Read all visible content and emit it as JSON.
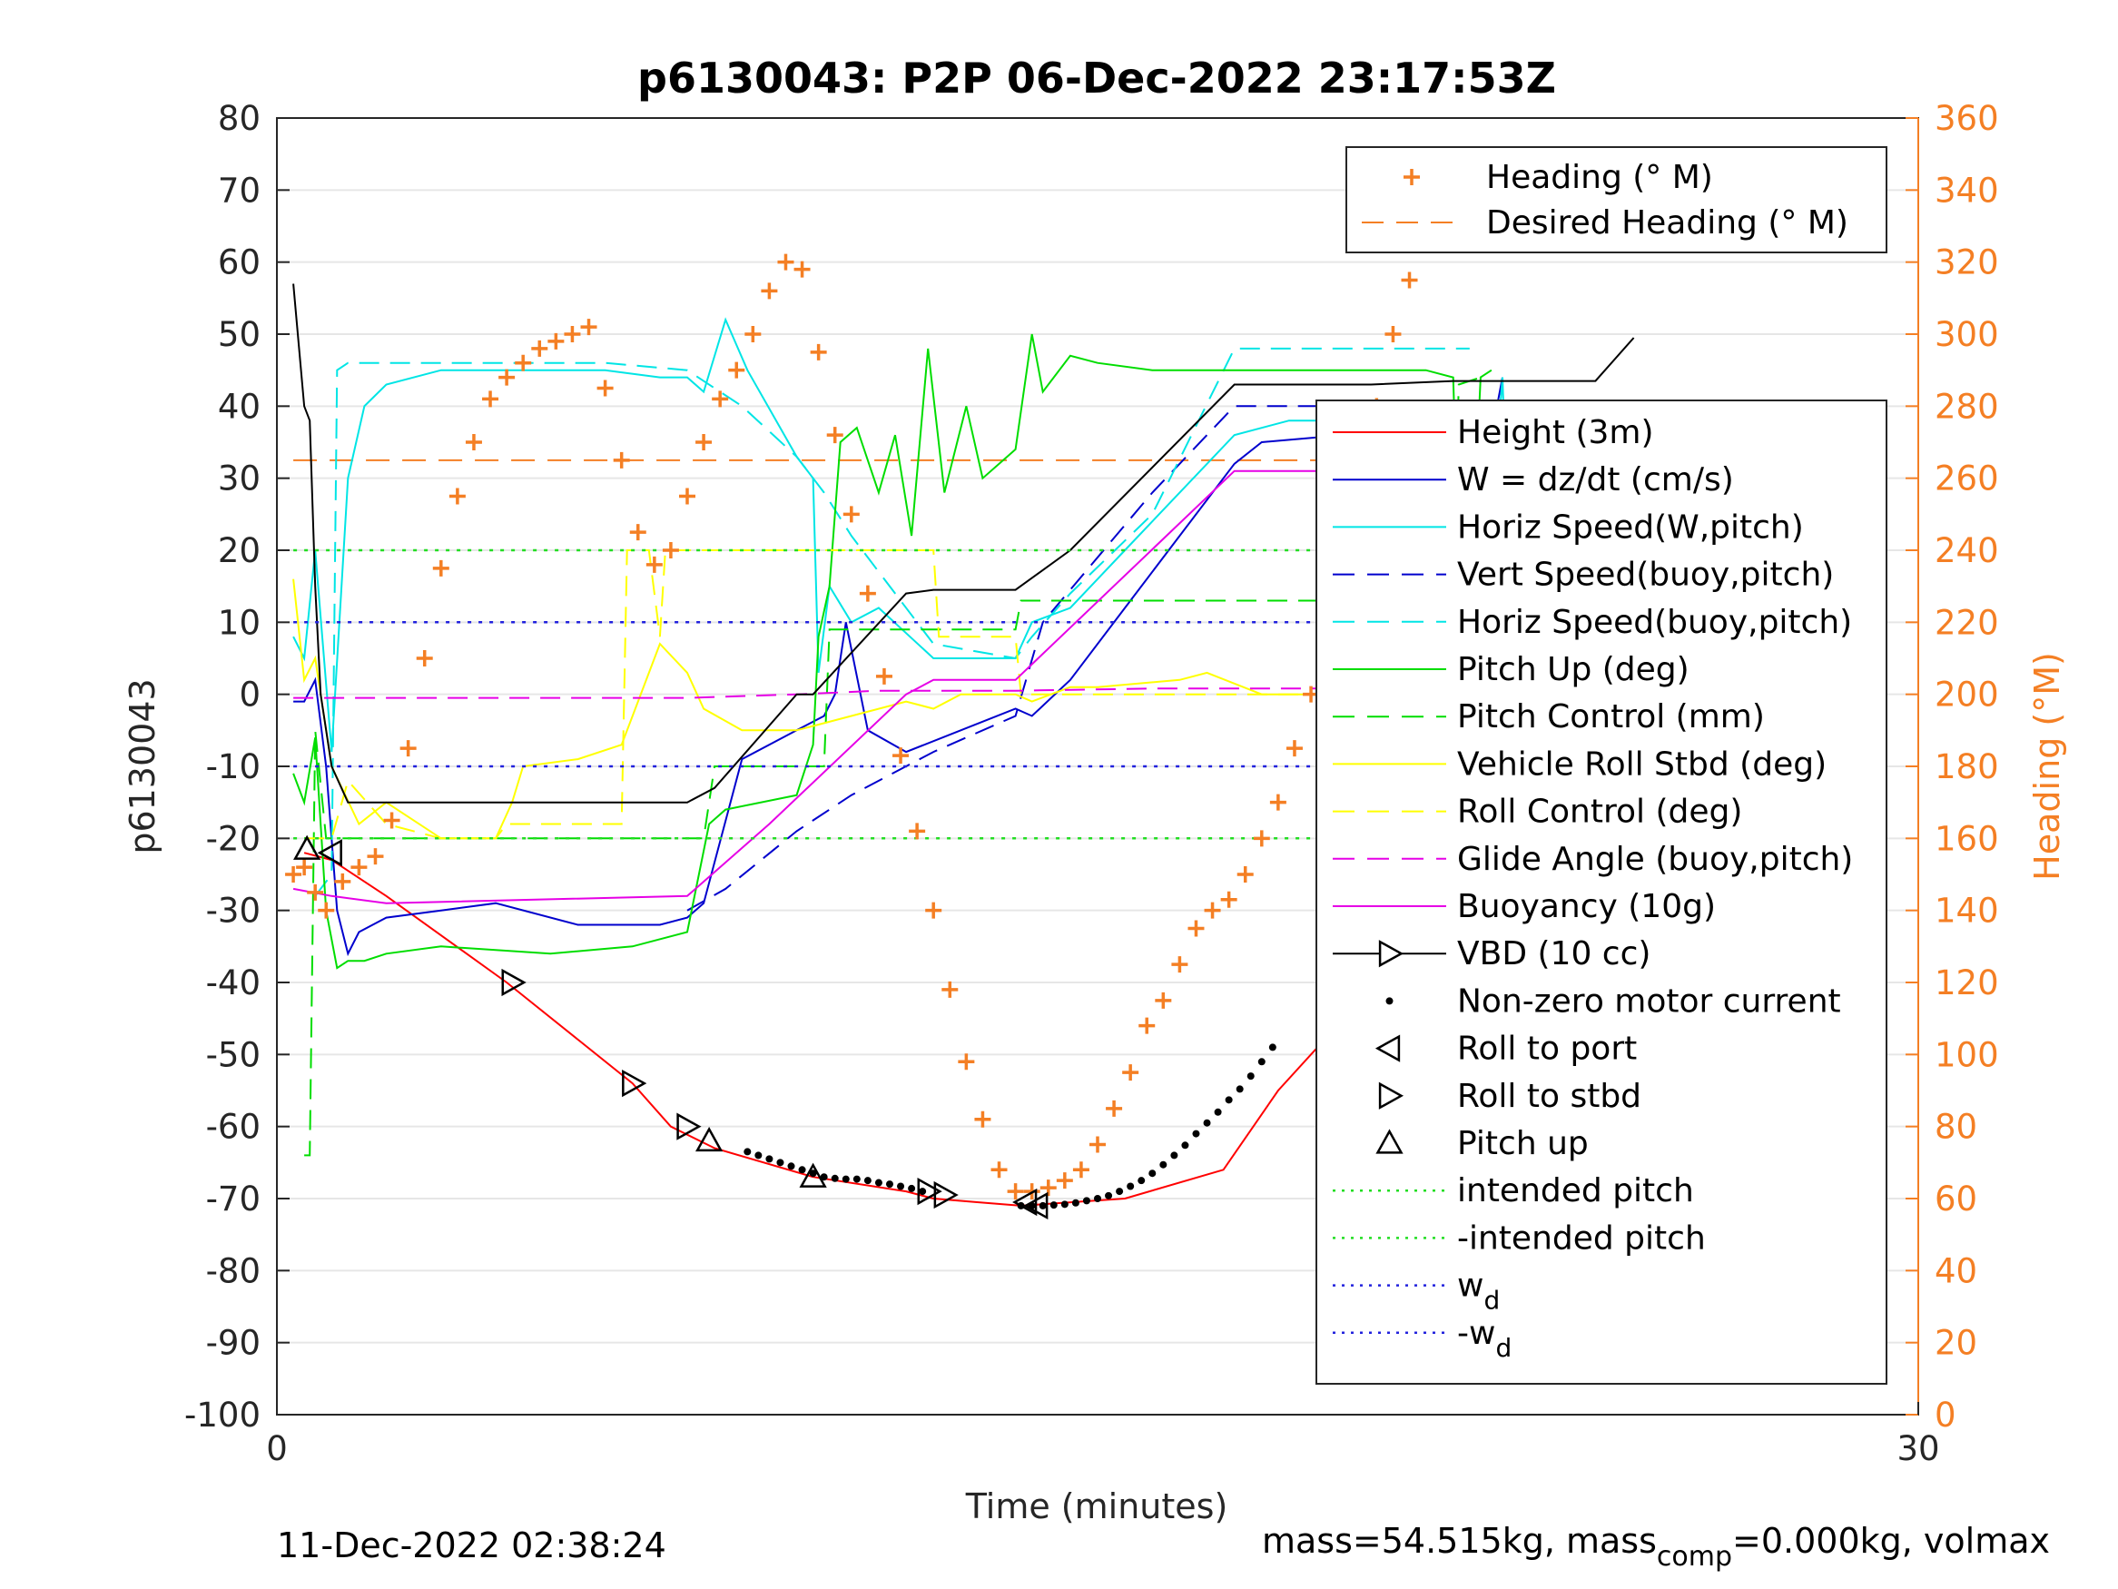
{
  "chart_data": {
    "type": "line",
    "title": "p6130043: P2P 06-Dec-2022 23:17:53Z",
    "xlabel": "Time (minutes)",
    "ylabel_left": "p6130043",
    "ylabel_right": "Heading (°M)",
    "xlim": [
      0,
      30
    ],
    "ylim_left": [
      -100,
      80
    ],
    "ylim_right": [
      0,
      360
    ],
    "x_ticks": [
      "0",
      "30"
    ],
    "y_ticks_left": [
      "80",
      "70",
      "60",
      "50",
      "40",
      "30",
      "20",
      "10",
      "0",
      "-10",
      "-20",
      "-30",
      "-40",
      "-50",
      "-60",
      "-70",
      "-80",
      "-90",
      "-100"
    ],
    "y_ticks_right": [
      "360",
      "340",
      "320",
      "300",
      "280",
      "260",
      "240",
      "220",
      "200",
      "180",
      "160",
      "140",
      "120",
      "100",
      "80",
      "60",
      "40",
      "20",
      "0"
    ],
    "grid": "horizontal",
    "footer_left": "11-Dec-2022 02:38:24",
    "footer_right": {
      "prefix": "mass=54.515kg, mass",
      "sub": "comp",
      "suffix": "=0.000kg, volmax"
    },
    "colors": {
      "heading": "#f47f24",
      "height": "#ff0000",
      "w": "#0000cd",
      "horiz": "#00e5e5",
      "pitch": "#00dd00",
      "roll": "#ffff00",
      "glide": "#e600e6",
      "vbd": "#000000",
      "intended": "#22dd22",
      "wd": "#2222dd"
    },
    "legend_top": [
      {
        "label": "Heading (° M)",
        "style": "plus",
        "color": "#f47f24"
      },
      {
        "label": "Desired Heading (° M)",
        "style": "dash",
        "color": "#f47f24"
      }
    ],
    "legend_main": [
      {
        "label": "Height (3m)",
        "style": "solid",
        "color": "#ff0000"
      },
      {
        "label": "W = dz/dt (cm/s)",
        "style": "solid",
        "color": "#0000cd"
      },
      {
        "label": "Horiz Speed(W,pitch)",
        "style": "solid",
        "color": "#00e5e5"
      },
      {
        "label": "Vert Speed(buoy,pitch)",
        "style": "dash",
        "color": "#0000cd"
      },
      {
        "label": "Horiz Speed(buoy,pitch)",
        "style": "dash",
        "color": "#00e5e5"
      },
      {
        "label": "Pitch Up (deg)",
        "style": "solid",
        "color": "#00dd00"
      },
      {
        "label": "Pitch Control (mm)",
        "style": "dash",
        "color": "#00dd00"
      },
      {
        "label": "Vehicle Roll Stbd (deg)",
        "style": "solid",
        "color": "#ffff00"
      },
      {
        "label": "Roll Control (deg)",
        "style": "dash",
        "color": "#ffff00"
      },
      {
        "label": "Glide Angle (buoy,pitch)",
        "style": "dash",
        "color": "#e600e6"
      },
      {
        "label": "Buoyancy (10g)",
        "style": "solid",
        "color": "#e600e6"
      },
      {
        "label": "VBD (10 cc)",
        "style": "tri-right-line",
        "color": "#000000"
      },
      {
        "label": "Non-zero motor current",
        "style": "dot",
        "color": "#000000"
      },
      {
        "label": "Roll to port",
        "style": "tri-left",
        "color": "#000000"
      },
      {
        "label": "Roll to stbd",
        "style": "tri-right",
        "color": "#000000"
      },
      {
        "label": "Pitch up",
        "style": "tri-up",
        "color": "#000000"
      },
      {
        "label": "intended pitch",
        "style": "dotted",
        "color": "#22dd22"
      },
      {
        "label": "-intended pitch",
        "style": "dotted",
        "color": "#22dd22"
      },
      {
        "label": "w",
        "sub": "d",
        "style": "dotted",
        "color": "#2222dd"
      },
      {
        "label": "-w",
        "sub": "d",
        "style": "dotted",
        "color": "#2222dd"
      }
    ],
    "series": [
      {
        "name": "Height (3m)",
        "color": "#ff0000",
        "dash": "",
        "x": [
          0.5,
          1.0,
          2.0,
          4.2,
          6.5,
          7.2,
          8.0,
          9.8,
          11.5,
          12.0,
          12.8,
          13.6,
          15.5,
          17.3,
          18.3,
          21.3,
          22.0,
          23.3,
          24.2,
          25.5
        ],
        "y": [
          -22,
          -23,
          -28,
          -40,
          -54,
          -60,
          -63,
          -67,
          -69,
          -70,
          -70.5,
          -71,
          -70,
          -66,
          -55,
          -30,
          -23,
          -21,
          -20.5,
          -21
        ]
      },
      {
        "name": "W = dz/dt (cm/s)",
        "color": "#0000cd",
        "dash": "",
        "x": [
          0.3,
          0.5,
          0.7,
          0.9,
          1.1,
          1.3,
          1.5,
          2.0,
          3.0,
          4.0,
          5.5,
          7.0,
          7.5,
          7.8,
          8.5,
          9.5,
          10.0,
          10.2,
          10.4,
          10.8,
          11.5,
          12.5,
          13.5,
          13.8,
          14.5,
          15.5,
          17.5,
          18.0,
          19.5,
          20.5,
          21.0,
          21.5,
          21.8,
          22.0,
          22.2,
          22.4
        ],
        "y": [
          -1,
          -1,
          2,
          -10,
          -30,
          -36,
          -33,
          -31,
          -30,
          -29,
          -32,
          -32,
          -31,
          -29,
          -9,
          -5,
          -3,
          0,
          10,
          -5,
          -8,
          -5,
          -2,
          -3,
          2,
          12,
          32,
          35,
          36,
          36,
          36,
          35,
          37,
          38,
          36,
          44
        ]
      },
      {
        "name": "Horiz Speed(W,pitch)",
        "color": "#00e5e5",
        "dash": "",
        "x": [
          0.3,
          0.5,
          0.7,
          1.0,
          1.3,
          1.6,
          2.0,
          3.0,
          4.5,
          6.0,
          7.0,
          7.5,
          7.8,
          8.2,
          8.6,
          9.5,
          9.8,
          9.9,
          10.1,
          10.5,
          11.0,
          12.0,
          13.5,
          13.8,
          14.5,
          15.5,
          17.5,
          18.5,
          20.0,
          21.0,
          21.5,
          21.8,
          22.0,
          22.4,
          22.6
        ],
        "y": [
          8,
          5,
          20,
          -8,
          30,
          40,
          43,
          45,
          45,
          45,
          44,
          44,
          42,
          52,
          45,
          33,
          30,
          3,
          15,
          10,
          12,
          5,
          5,
          10,
          12,
          20,
          36,
          38,
          38,
          38,
          38,
          37,
          5,
          44,
          0
        ]
      },
      {
        "name": "Vert Speed(buoy,pitch)",
        "color": "#0000cd",
        "dash": "22,12",
        "x": [
          7.5,
          8.2,
          9.5,
          10.5,
          12.0,
          13.5,
          14.0,
          16.0,
          17.5,
          20.0,
          21.5,
          21.8
        ],
        "y": [
          -30,
          -27,
          -19,
          -14,
          -8,
          -3,
          10,
          28,
          40,
          40,
          38,
          34
        ]
      },
      {
        "name": "Horiz Speed(buoy,pitch)",
        "color": "#00e5e5",
        "dash": "22,12",
        "x": [
          0.7,
          1.0,
          1.1,
          1.3,
          3.0,
          6.0,
          7.5,
          8.5,
          9.5,
          10.0,
          10.5,
          12.0,
          13.5,
          13.8,
          14.5,
          16.0,
          17.5,
          20.0,
          21.5,
          21.8
        ],
        "y": [
          -28,
          -25,
          45,
          46,
          46,
          46,
          45,
          40,
          33,
          28,
          22,
          7,
          5,
          8,
          14,
          25,
          48,
          48,
          48,
          48
        ]
      },
      {
        "name": "Pitch Up (deg)",
        "color": "#00dd00",
        "dash": "",
        "x": [
          0.3,
          0.5,
          0.7,
          0.9,
          1.1,
          1.3,
          1.6,
          2.0,
          3.0,
          5.0,
          6.5,
          7.5,
          7.9,
          8.2,
          9.5,
          9.8,
          9.9,
          10.1,
          10.3,
          10.6,
          11.0,
          11.3,
          11.6,
          11.9,
          12.2,
          12.6,
          12.9,
          13.5,
          13.8,
          14.0,
          14.5,
          15.0,
          16.0,
          18.0,
          19.5,
          20.5,
          21.0,
          21.5,
          21.7,
          22.0,
          22.2
        ],
        "y": [
          -11,
          -15,
          -6,
          -30,
          -38,
          -37,
          -37,
          -36,
          -35,
          -36,
          -35,
          -33,
          -18,
          -16,
          -14,
          -7,
          8,
          15,
          35,
          37,
          28,
          36,
          22,
          48,
          28,
          40,
          30,
          34,
          50,
          42,
          47,
          46,
          45,
          45,
          45,
          45,
          45,
          44,
          -5,
          44,
          45
        ]
      },
      {
        "name": "Pitch Control (mm)",
        "color": "#00dd00",
        "dash": "22,12",
        "x": [
          0.5,
          0.6,
          0.7,
          0.9,
          2.0,
          7.8,
          8.0,
          10.0,
          10.1,
          13.5,
          13.6,
          21.5,
          21.6,
          22.0
        ],
        "y": [
          -64,
          -64,
          -5,
          -20,
          -20,
          -20,
          -10,
          -10,
          9,
          9,
          13,
          13,
          43,
          44
        ]
      },
      {
        "name": "Vehicle Roll Stbd (deg)",
        "color": "#ffff00",
        "dash": "",
        "x": [
          0.3,
          0.5,
          0.7,
          1.0,
          1.5,
          2.0,
          3.0,
          4.0,
          4.3,
          4.5,
          5.5,
          6.3,
          6.6,
          7.0,
          7.5,
          7.8,
          8.5,
          9.5,
          10.5,
          11.5,
          12.0,
          12.5,
          13.5,
          13.8,
          14.5,
          15.0,
          16.5,
          17.0,
          18.0,
          20.0,
          20.3,
          20.6,
          21.0,
          21.5
        ],
        "y": [
          16,
          2,
          5,
          -10,
          -18,
          -15,
          -20,
          -20,
          -15,
          -10,
          -9,
          -7,
          -1,
          7,
          3,
          -2,
          -5,
          -5,
          -3,
          -1,
          -2,
          0,
          0,
          -1,
          1,
          1,
          2,
          3,
          0,
          0,
          -1,
          5,
          10,
          0
        ]
      },
      {
        "name": "Roll Control (deg)",
        "color": "#ffff00",
        "dash": "22,12",
        "x": [
          0.5,
          1.0,
          1.3,
          2.0,
          3.0,
          4.0,
          4.2,
          6.3,
          6.4,
          6.8,
          7.0,
          7.1,
          7.4,
          12.0,
          12.1,
          13.5,
          13.6,
          20.0,
          20.1,
          21.0,
          21.5,
          22.0,
          22.4
        ],
        "y": [
          -20,
          -20,
          -12,
          -18,
          -20,
          -20,
          -18,
          -18,
          20,
          20,
          8,
          20,
          20,
          20,
          8,
          8,
          0,
          0,
          5,
          -2,
          -3,
          0,
          -1
        ]
      },
      {
        "name": "Glide Angle (buoy,pitch)",
        "color": "#e600e6",
        "dash": "22,12",
        "x": [
          0.3,
          1.0,
          4.0,
          7.5,
          9.5,
          11.0,
          12.0,
          13.5,
          16.0,
          18.0,
          20.0,
          21.8
        ],
        "y": [
          -0.5,
          -0.5,
          -0.5,
          -0.5,
          0,
          0.5,
          0.5,
          0.5,
          0.8,
          0.8,
          0.8,
          0.8
        ]
      },
      {
        "name": "Buoyancy (10g)",
        "color": "#e600e6",
        "dash": "",
        "x": [
          0.3,
          1.0,
          2.0,
          7.5,
          9.0,
          11.5,
          12.0,
          13.5,
          17.5,
          21.8
        ],
        "y": [
          -27,
          -28,
          -29,
          -28,
          -18,
          0,
          2,
          2,
          31,
          31
        ]
      },
      {
        "name": "VBD (10 cc)",
        "color": "#000000",
        "dash": "",
        "x": [
          0.3,
          0.5,
          0.6,
          0.7,
          0.8,
          1.0,
          1.3,
          2.0,
          4.0,
          7.5,
          8.0,
          9.5,
          9.8,
          11.5,
          12.0,
          13.5,
          14.5,
          17.5,
          20.0,
          21.5,
          24.1,
          24.8
        ],
        "y": [
          57,
          40,
          38,
          15,
          0,
          -10,
          -15,
          -15,
          -15,
          -15,
          -13,
          0,
          0,
          14,
          14.5,
          14.5,
          20,
          43,
          43,
          43.5,
          43.5,
          49.5
        ]
      },
      {
        "name": "intended pitch",
        "color": "#22dd22",
        "dash": "4,8",
        "x": [
          0.3,
          24.8
        ],
        "y": [
          20,
          20
        ]
      },
      {
        "name": "-intended pitch",
        "color": "#22dd22",
        "dash": "4,8",
        "x": [
          0.3,
          24.8
        ],
        "y": [
          -20,
          -20
        ]
      },
      {
        "name": "w_d",
        "color": "#2222dd",
        "dash": "4,8",
        "x": [
          0.3,
          24.8
        ],
        "y": [
          10,
          10
        ]
      },
      {
        "name": "-w_d",
        "color": "#2222dd",
        "dash": "4,8",
        "x": [
          0.3,
          24.8
        ],
        "y": [
          -10,
          -10
        ]
      }
    ],
    "heading_points": {
      "axis": "right",
      "x": [
        0.3,
        0.5,
        0.7,
        0.9,
        1.2,
        1.5,
        1.8,
        2.1,
        2.4,
        2.7,
        3.0,
        3.3,
        3.6,
        3.9,
        4.2,
        4.5,
        4.8,
        5.1,
        5.4,
        5.7,
        6.0,
        6.3,
        6.6,
        6.9,
        7.2,
        7.5,
        7.8,
        8.1,
        8.4,
        8.7,
        9.0,
        9.3,
        9.6,
        9.9,
        10.2,
        10.5,
        10.8,
        11.1,
        11.4,
        11.7,
        12.0,
        12.3,
        12.6,
        12.9,
        13.2,
        13.5,
        13.8,
        14.1,
        14.4,
        14.7,
        15.0,
        15.3,
        15.6,
        15.9,
        16.2,
        16.5,
        16.8,
        17.1,
        17.4,
        17.7,
        18.0,
        18.3,
        18.6,
        18.9,
        19.2,
        19.5,
        19.8,
        20.1,
        20.4,
        20.7,
        21.0,
        21.3,
        21.6,
        21.9,
        22.2,
        22.5,
        22.8,
        23.1,
        23.4,
        23.7,
        24.0,
        24.3,
        24.6,
        24.9,
        25.2,
        25.5
      ],
      "y": [
        150,
        152,
        145,
        140,
        148,
        152,
        155,
        165,
        185,
        210,
        235,
        255,
        270,
        282,
        288,
        292,
        296,
        298,
        300,
        302,
        285,
        265,
        245,
        236,
        240,
        255,
        270,
        282,
        290,
        300,
        312,
        320,
        318,
        295,
        272,
        250,
        228,
        205,
        183,
        162,
        140,
        118,
        98,
        82,
        68,
        62,
        62,
        63,
        65,
        68,
        75,
        85,
        95,
        108,
        115,
        125,
        135,
        140,
        143,
        150,
        160,
        170,
        185,
        200,
        220,
        240,
        260,
        280,
        300,
        315,
        327,
        327,
        327,
        326,
        326,
        327,
        327,
        326,
        326,
        326,
        326,
        326,
        326,
        326,
        326,
        326
      ]
    },
    "desired_heading": {
      "axis": "right",
      "x": [
        0.3,
        24.8
      ],
      "y": [
        265,
        265
      ]
    },
    "motor_dots": {
      "x": [
        8.6,
        8.8,
        9.0,
        9.2,
        9.4,
        9.6,
        9.8,
        10.0,
        10.2,
        10.4,
        10.6,
        10.8,
        11.0,
        11.2,
        11.4,
        11.6,
        11.8,
        13.6,
        13.8,
        14.0,
        14.2,
        14.4,
        14.6,
        14.8,
        15.0,
        15.2,
        15.4,
        15.6,
        15.8,
        16.0,
        16.2,
        16.4,
        16.6,
        16.8,
        17.0,
        17.2,
        17.4,
        17.6,
        17.8,
        18.0,
        18.2,
        23.6,
        23.8,
        24.0,
        24.2,
        24.4,
        24.6,
        24.8
      ],
      "y": [
        -63.5,
        -64,
        -64.5,
        -65,
        -65.5,
        -66,
        -66.5,
        -67,
        -67.2,
        -67.3,
        -67.3,
        -67.5,
        -67.8,
        -68,
        -68.3,
        -68.6,
        -69,
        -71,
        -71,
        -71,
        -70.9,
        -70.8,
        -70.6,
        -70.3,
        -70,
        -69.6,
        -69,
        -68.3,
        -67.5,
        -66.5,
        -65.3,
        -64,
        -62.6,
        -61,
        -59.5,
        -58,
        -56.3,
        -54.8,
        -53,
        -51,
        -49,
        -20.5,
        -20.5,
        -20.5,
        -20.5,
        -20.5,
        -20.5,
        -20.5
      ]
    },
    "markers": [
      {
        "type": "tri-up",
        "x": 0.55,
        "y": -21.5
      },
      {
        "type": "tri-left",
        "x": 1.0,
        "y": -22
      },
      {
        "type": "tri-right",
        "x": 4.3,
        "y": -40
      },
      {
        "type": "tri-right",
        "x": 6.5,
        "y": -54
      },
      {
        "type": "tri-right",
        "x": 7.5,
        "y": -60
      },
      {
        "type": "tri-up",
        "x": 7.9,
        "y": -62
      },
      {
        "type": "tri-up",
        "x": 9.8,
        "y": -67
      },
      {
        "type": "tri-right",
        "x": 11.9,
        "y": -69
      },
      {
        "type": "tri-right",
        "x": 12.2,
        "y": -69.5
      },
      {
        "type": "tri-left",
        "x": 13.7,
        "y": -70.5
      },
      {
        "type": "tri-left",
        "x": 13.9,
        "y": -71
      },
      {
        "type": "tri-left",
        "x": 21.7,
        "y": -24
      },
      {
        "type": "tri-up",
        "x": 24.1,
        "y": -20.5
      }
    ]
  }
}
